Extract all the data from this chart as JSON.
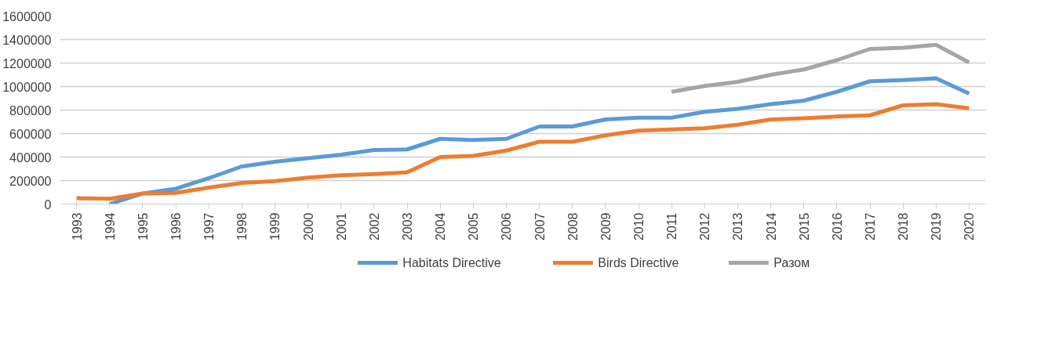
{
  "chart_data": {
    "type": "line",
    "categories": [
      "1993",
      "1994",
      "1995",
      "1996",
      "1997",
      "1998",
      "1999",
      "2000",
      "2001",
      "2002",
      "2003",
      "2004",
      "2005",
      "2006",
      "2007",
      "2008",
      "2009",
      "2010",
      "2011",
      "2012",
      "2013",
      "2014",
      "2015",
      "2016",
      "2017",
      "2018",
      "2019",
      "2020"
    ],
    "series": [
      {
        "name": "Habitats Directive",
        "color": "#5b9bd5",
        "values": [
          null,
          0,
          90000,
          130000,
          220000,
          320000,
          360000,
          390000,
          420000,
          460000,
          465000,
          555000,
          545000,
          555000,
          660000,
          660000,
          720000,
          735000,
          735000,
          785000,
          810000,
          850000,
          880000,
          955000,
          1045000,
          1055000,
          1070000,
          940000
        ]
      },
      {
        "name": "Birds Directive",
        "color": "#ed7d31",
        "values": [
          50000,
          45000,
          90000,
          95000,
          140000,
          180000,
          195000,
          225000,
          245000,
          255000,
          270000,
          400000,
          410000,
          455000,
          530000,
          530000,
          585000,
          625000,
          635000,
          645000,
          675000,
          720000,
          730000,
          745000,
          755000,
          840000,
          850000,
          815000
        ]
      },
      {
        "name": "Разом",
        "color": "#a5a5a5",
        "values": [
          null,
          null,
          null,
          null,
          null,
          null,
          null,
          null,
          null,
          null,
          null,
          null,
          null,
          null,
          null,
          null,
          null,
          null,
          955000,
          1005000,
          1040000,
          1100000,
          1145000,
          1225000,
          1320000,
          1330000,
          1355000,
          1205000
        ]
      }
    ],
    "ylim": [
      0,
      1600000
    ],
    "yticks": [
      0,
      200000,
      400000,
      600000,
      800000,
      1000000,
      1200000,
      1400000,
      1600000
    ],
    "grid": "y",
    "legend": "bottom",
    "line_style": "solid",
    "marker": "none"
  }
}
